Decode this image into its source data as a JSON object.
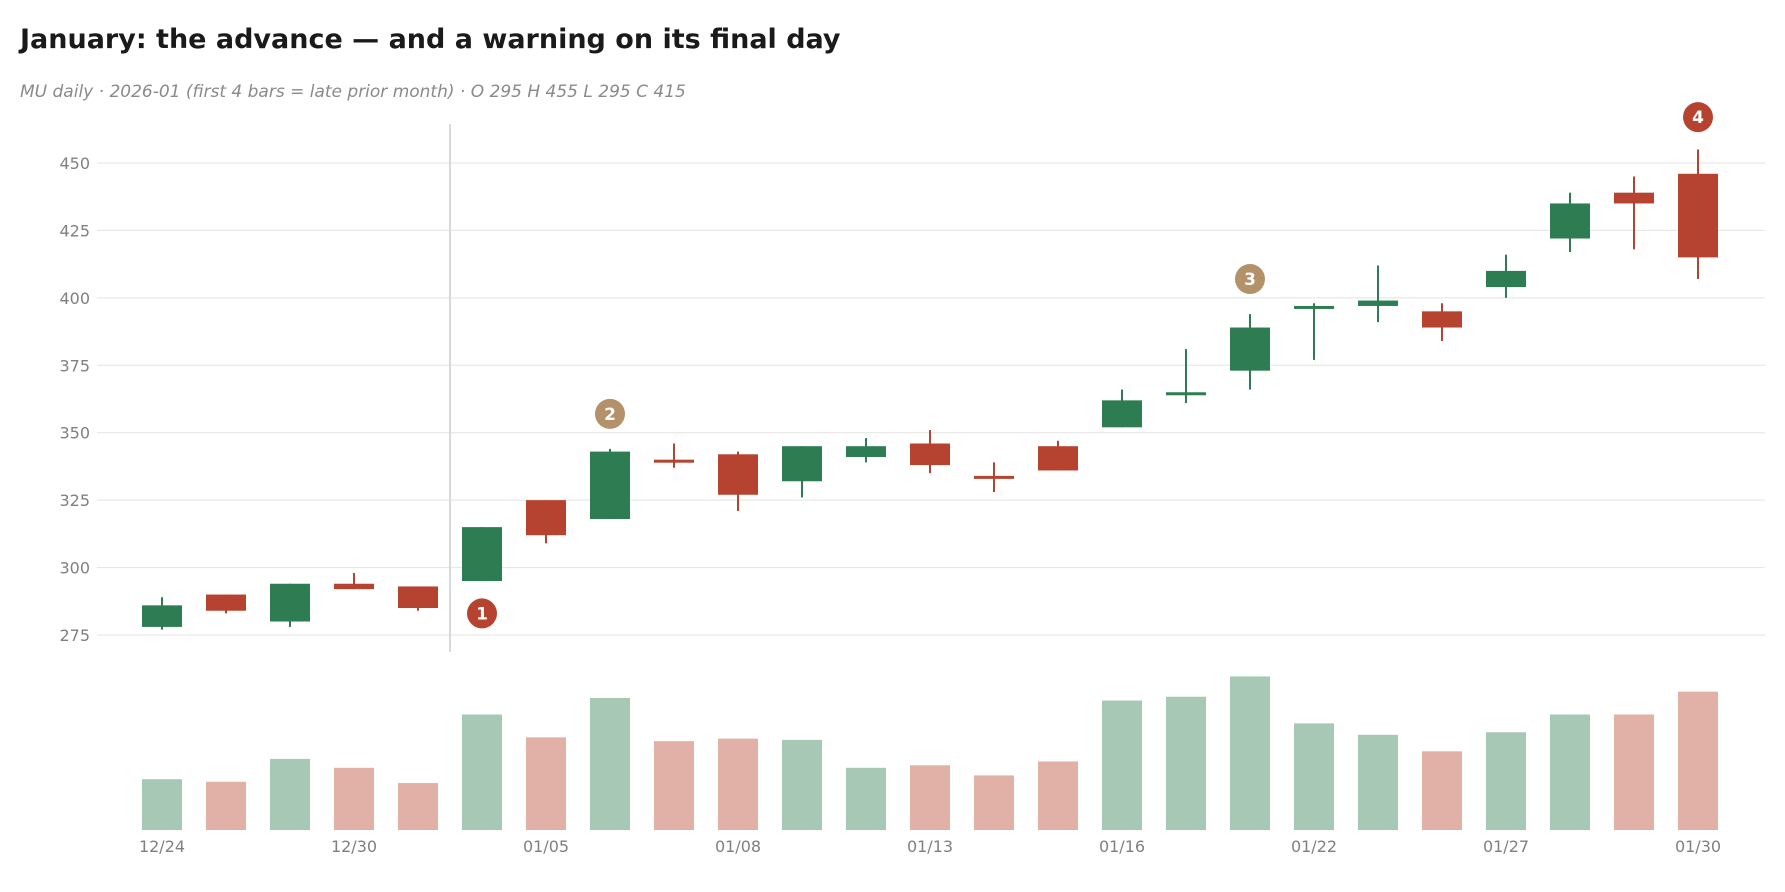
{
  "header": {
    "title": "January: the advance — and a warning on its final day",
    "subtitle": "MU daily · 2026-01 (first 4 bars = late prior month) · O 295 H 455 L 295 C 415"
  },
  "colors": {
    "up": "#2e7d52",
    "down": "#b5432f",
    "up_volume": "#a8c8b6",
    "down_volume": "#e1b1a8",
    "grid": "#e3e3e3",
    "divider": "#d9d9d9",
    "marker_red": "#b5432f",
    "marker_tan": "#b39169"
  },
  "chart_data": {
    "type": "candlestick",
    "ticker": "MU",
    "title": "January: the advance — and a warning on its final day",
    "subtitle": "MU daily · 2026-01 (first 4 bars = late prior month) · O 295 H 455 L 295 C 415",
    "ylim": [
      270,
      458
    ],
    "yticks": [
      275,
      300,
      325,
      350,
      375,
      400,
      425,
      450
    ],
    "grid": true,
    "x_tick_labels": [
      {
        "index": 0,
        "label": "12/24"
      },
      {
        "index": 3,
        "label": "12/30"
      },
      {
        "index": 6,
        "label": "01/05"
      },
      {
        "index": 9,
        "label": "01/08"
      },
      {
        "index": 12,
        "label": "01/13"
      },
      {
        "index": 15,
        "label": "01/16"
      },
      {
        "index": 18,
        "label": "01/22"
      },
      {
        "index": 21,
        "label": "01/27"
      },
      {
        "index": 24,
        "label": "01/30"
      }
    ],
    "divider_after_index": 4,
    "candles": [
      {
        "open": 278,
        "high": 289,
        "low": 277,
        "close": 286
      },
      {
        "open": 290,
        "high": 290,
        "low": 283,
        "close": 284
      },
      {
        "open": 280,
        "high": 294,
        "low": 278,
        "close": 294
      },
      {
        "open": 294,
        "high": 298,
        "low": 292,
        "close": 292
      },
      {
        "open": 293,
        "high": 293,
        "low": 284,
        "close": 285
      },
      {
        "open": 295,
        "high": 315,
        "low": 295,
        "close": 315
      },
      {
        "open": 325,
        "high": 325,
        "low": 309,
        "close": 312
      },
      {
        "open": 318,
        "high": 344,
        "low": 318,
        "close": 343
      },
      {
        "open": 340,
        "high": 346,
        "low": 337,
        "close": 339
      },
      {
        "open": 342,
        "high": 343,
        "low": 321,
        "close": 327
      },
      {
        "open": 332,
        "high": 345,
        "low": 326,
        "close": 345
      },
      {
        "open": 341,
        "high": 348,
        "low": 339,
        "close": 345
      },
      {
        "open": 346,
        "high": 351,
        "low": 335,
        "close": 338
      },
      {
        "open": 334,
        "high": 339,
        "low": 328,
        "close": 333
      },
      {
        "open": 345,
        "high": 347,
        "low": 336,
        "close": 336
      },
      {
        "open": 352,
        "high": 366,
        "low": 352,
        "close": 362
      },
      {
        "open": 365,
        "high": 381,
        "low": 361,
        "close": 365
      },
      {
        "open": 373,
        "high": 394,
        "low": 366,
        "close": 389
      },
      {
        "open": 396,
        "high": 398,
        "low": 377,
        "close": 397
      },
      {
        "open": 397,
        "high": 412,
        "low": 391,
        "close": 399
      },
      {
        "open": 395,
        "high": 398,
        "low": 384,
        "close": 389
      },
      {
        "open": 404,
        "high": 416,
        "low": 400,
        "close": 410
      },
      {
        "open": 422,
        "high": 439,
        "low": 417,
        "close": 435
      },
      {
        "open": 439,
        "high": 445,
        "low": 418,
        "close": 435
      },
      {
        "open": 446,
        "high": 455,
        "low": 407,
        "close": 415
      }
    ],
    "volume": [
      40,
      38,
      56,
      49,
      37,
      91,
      73,
      104,
      70,
      72,
      71,
      49,
      51,
      43,
      54,
      102,
      105,
      121,
      84,
      75,
      62,
      77,
      91,
      91,
      109
    ],
    "volume_max": 130,
    "markers": [
      {
        "label": "1",
        "index": 5,
        "price": 283,
        "color": "red"
      },
      {
        "label": "2",
        "index": 7,
        "price": 357,
        "color": "tan"
      },
      {
        "label": "3",
        "index": 17,
        "price": 407,
        "color": "tan"
      },
      {
        "label": "4",
        "index": 24,
        "price": 467,
        "color": "red"
      }
    ]
  }
}
